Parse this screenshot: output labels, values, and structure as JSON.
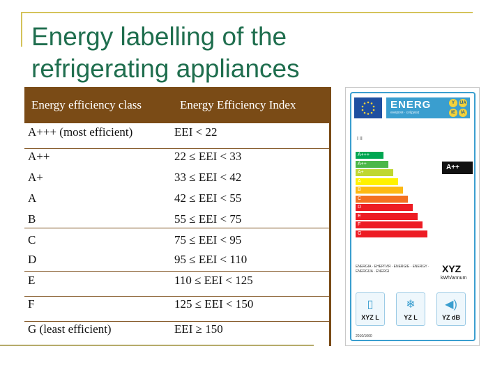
{
  "slide": {
    "title_line1": "Energy labelling of the",
    "title_line2": "refrigerating appliances"
  },
  "table": {
    "headers": [
      "Energy efficiency class",
      "Energy Efficiency Index"
    ],
    "rows": [
      {
        "cls": "A+++ (most efficient)",
        "eei": "EEI < 22"
      },
      {
        "cls": "A++",
        "eei": "22 ≤ EEI < 33"
      },
      {
        "cls": "A+",
        "eei": "33 ≤ EEI < 42"
      },
      {
        "cls": "A",
        "eei": "42 ≤ EEI < 55"
      },
      {
        "cls": "B",
        "eei": "55 ≤ EEI < 75"
      },
      {
        "cls": "C",
        "eei": "75 ≤ EEI < 95"
      },
      {
        "cls": "D",
        "eei": "95 ≤ EEI < 110"
      },
      {
        "cls": "E",
        "eei": "110 ≤ EEI < 125"
      },
      {
        "cls": "F",
        "eei": "125 ≤ EEI < 150"
      },
      {
        "cls": "G (least efficient)",
        "eei": "EEI ≥ 150"
      }
    ],
    "header_bg": "#7a4b16"
  },
  "energy_label": {
    "brand": "ENERG",
    "brand_sub": "енергия · ενέργεια",
    "languages": [
      "Y",
      "IJA",
      "IE",
      "IA"
    ],
    "ii_marks": "I          II",
    "classes": [
      {
        "label": "A+++",
        "color": "#00a651"
      },
      {
        "label": "A++",
        "color": "#4cb748"
      },
      {
        "label": "A+",
        "color": "#bfd730"
      },
      {
        "label": "A",
        "color": "#fff200"
      },
      {
        "label": "B",
        "color": "#fdb913"
      },
      {
        "label": "C",
        "color": "#f37021"
      },
      {
        "label": "D",
        "color": "#ed1c24"
      },
      {
        "label": "E",
        "color": "#ed1c24"
      },
      {
        "label": "F",
        "color": "#ed1c24"
      },
      {
        "label": "G",
        "color": "#ed1c24"
      }
    ],
    "rating": "A++",
    "energy_words": "ENERGIA · ЕНЕРГИЯ · ENERGIE · ENERGY · ENERGIJA · ENERGI",
    "consumption": "XYZ",
    "consumption_unit": "kWh/annum",
    "fresh_volume": "XYZ L",
    "frozen_volume": "YZ L",
    "noise": "YZ dB",
    "regulation": "2010/1060"
  }
}
